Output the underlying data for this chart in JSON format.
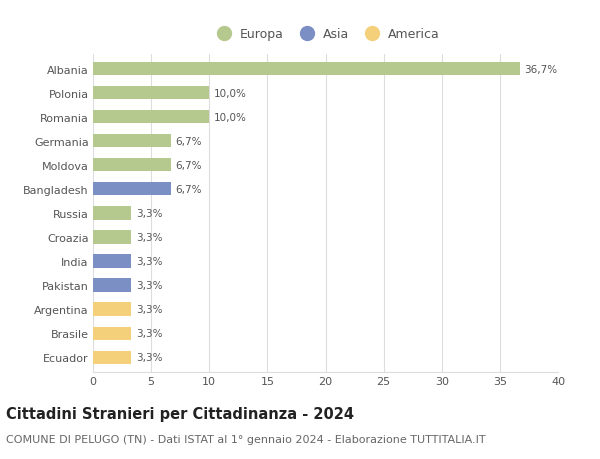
{
  "countries": [
    "Albania",
    "Polonia",
    "Romania",
    "Germania",
    "Moldova",
    "Bangladesh",
    "Russia",
    "Croazia",
    "India",
    "Pakistan",
    "Argentina",
    "Brasile",
    "Ecuador"
  ],
  "values": [
    36.7,
    10.0,
    10.0,
    6.7,
    6.7,
    6.7,
    3.3,
    3.3,
    3.3,
    3.3,
    3.3,
    3.3,
    3.3
  ],
  "labels": [
    "36,7%",
    "10,0%",
    "10,0%",
    "6,7%",
    "6,7%",
    "6,7%",
    "3,3%",
    "3,3%",
    "3,3%",
    "3,3%",
    "3,3%",
    "3,3%",
    "3,3%"
  ],
  "continents": [
    "Europa",
    "Europa",
    "Europa",
    "Europa",
    "Europa",
    "Asia",
    "Europa",
    "Europa",
    "Asia",
    "Asia",
    "America",
    "America",
    "America"
  ],
  "colors": {
    "Europa": "#b5c98e",
    "Asia": "#7b8fc4",
    "America": "#f5d07a"
  },
  "legend_entries": [
    "Europa",
    "Asia",
    "America"
  ],
  "title": "Cittadini Stranieri per Cittadinanza - 2024",
  "subtitle": "COMUNE DI PELUGO (TN) - Dati ISTAT al 1° gennaio 2024 - Elaborazione TUTTITALIA.IT",
  "xlim": [
    0,
    40
  ],
  "xticks": [
    0,
    5,
    10,
    15,
    20,
    25,
    30,
    35,
    40
  ],
  "background_color": "#ffffff",
  "grid_color": "#dddddd",
  "bar_height": 0.55,
  "title_fontsize": 10.5,
  "subtitle_fontsize": 8,
  "label_fontsize": 7.5,
  "tick_fontsize": 8,
  "legend_fontsize": 9
}
